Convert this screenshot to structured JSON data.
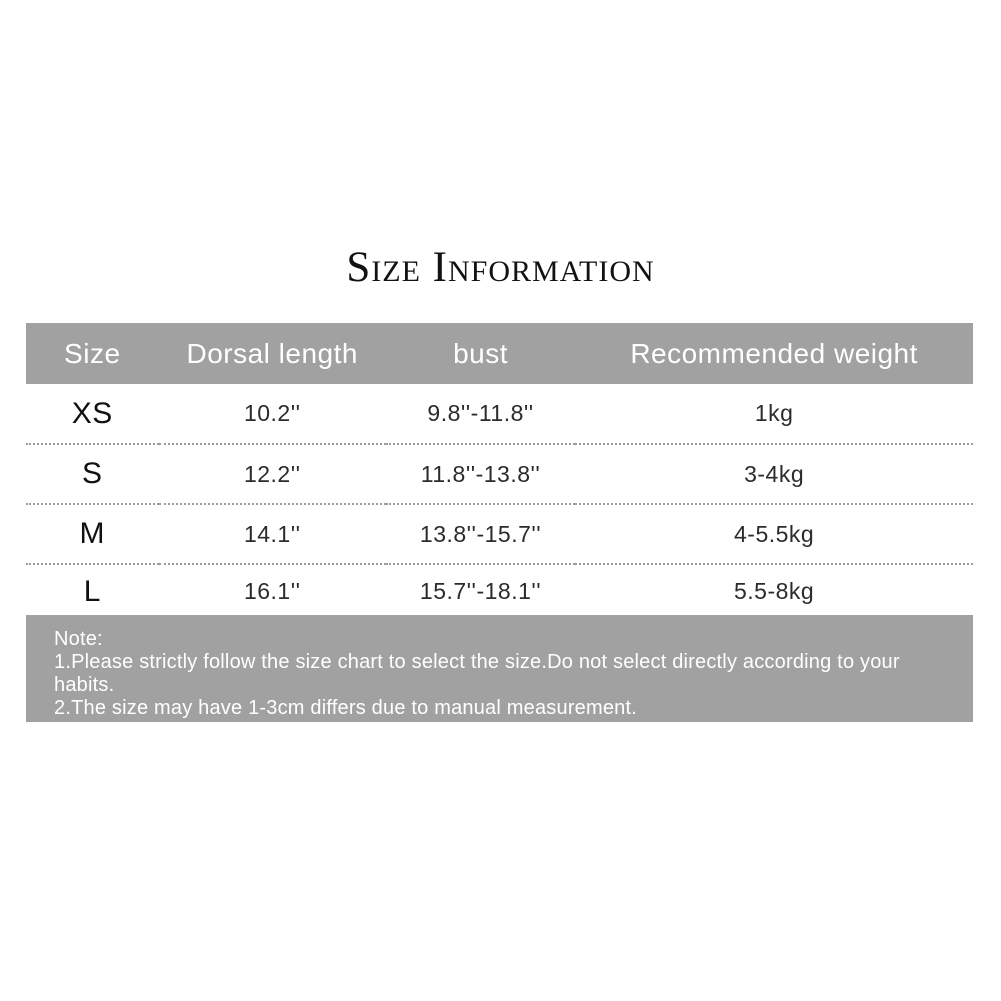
{
  "page": {
    "title": "Size Information"
  },
  "chart_data": {
    "type": "table",
    "title": "Size Information",
    "columns": [
      "Size",
      "Dorsal length",
      "bust",
      "Recommended weight"
    ],
    "rows": [
      [
        "XS",
        "10.2''",
        "9.8''-11.8''",
        "1kg"
      ],
      [
        "S",
        "12.2''",
        "11.8''-13.8''",
        "3-4kg"
      ],
      [
        "M",
        "14.1''",
        "13.8''-15.7''",
        "4-5.5kg"
      ],
      [
        "L",
        "16.1''",
        "15.7''-18.1''",
        "5.5-8kg"
      ]
    ]
  },
  "note": {
    "heading": "Note:",
    "line1": "1.Please strictly follow the size chart to select the size.Do not select directly according to your habits.",
    "line2": "2.The size may have 1-3cm differs due to manual measurement."
  },
  "colors": {
    "band_gray": "#a1a1a1",
    "header_text": "#ffffff",
    "body_text": "#2b2b2b",
    "size_text": "#111111",
    "dotted_separator": "#9c9c9c",
    "background": "#ffffff"
  }
}
